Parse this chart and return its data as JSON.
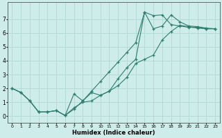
{
  "xlabel": "Humidex (Indice chaleur)",
  "line_color": "#2d7d6e",
  "bg_color": "#ceecea",
  "grid_color": "#b0d8d4",
  "xlim": [
    -0.5,
    23.5
  ],
  "ylim": [
    -0.5,
    8.2
  ],
  "xticks": [
    0,
    1,
    2,
    3,
    4,
    5,
    6,
    7,
    8,
    9,
    10,
    11,
    12,
    13,
    14,
    15,
    16,
    17,
    18,
    19,
    20,
    21,
    22,
    23
  ],
  "yticks": [
    0,
    1,
    2,
    3,
    4,
    5,
    6,
    7
  ],
  "series1_x": [
    0,
    1,
    2,
    3,
    4,
    5,
    6,
    7,
    8,
    9,
    10,
    11,
    12,
    13,
    14,
    15,
    16,
    17,
    18,
    19,
    20,
    21,
    22,
    23
  ],
  "series1_y": [
    2.0,
    1.7,
    1.1,
    0.3,
    0.3,
    0.4,
    0.05,
    1.6,
    1.1,
    1.7,
    1.5,
    1.8,
    2.7,
    3.5,
    4.1,
    7.5,
    7.25,
    7.3,
    6.6,
    6.5,
    6.4,
    6.4,
    6.3,
    6.3
  ],
  "series2_x": [
    0,
    1,
    2,
    3,
    4,
    5,
    6,
    7,
    8,
    9,
    10,
    11,
    12,
    13,
    14,
    15,
    16,
    17,
    18,
    19,
    20,
    21,
    22,
    23
  ],
  "series2_y": [
    2.0,
    1.7,
    1.1,
    0.3,
    0.3,
    0.4,
    0.05,
    0.5,
    1.1,
    1.8,
    2.5,
    3.2,
    3.9,
    4.6,
    5.3,
    7.5,
    6.3,
    6.5,
    7.3,
    6.8,
    6.5,
    6.45,
    6.35,
    6.3
  ],
  "series3_x": [
    0,
    1,
    2,
    3,
    4,
    5,
    6,
    7,
    8,
    9,
    10,
    11,
    12,
    13,
    14,
    15,
    16,
    17,
    18,
    19,
    20,
    21,
    22,
    23
  ],
  "series3_y": [
    2.0,
    1.7,
    1.1,
    0.3,
    0.3,
    0.4,
    0.05,
    0.6,
    1.0,
    1.1,
    1.5,
    1.8,
    2.2,
    2.8,
    3.8,
    4.1,
    4.4,
    5.5,
    6.1,
    6.55,
    6.45,
    6.35,
    6.3,
    6.3
  ]
}
